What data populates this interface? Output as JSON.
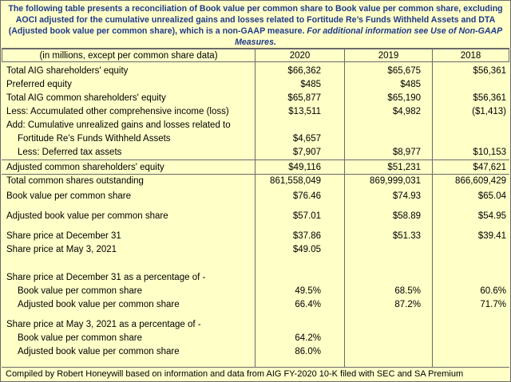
{
  "intro": {
    "text": "The following table presents a reconciliation of Book value per common share to Book value per common share, excluding AOCI adjusted for the cumulative unrealized gains and losses related to Fortitude Re’s Funds Withheld Assets and DTA (Adjusted book value per common share), which is a non-GAAP measure.",
    "emphasis": "For additional information see Use of Non-GAAP Measures."
  },
  "header": {
    "label": "(in millions, except per common share data)",
    "years": [
      "2020",
      "2019",
      "2018"
    ]
  },
  "rows": [
    {
      "label": "Total AIG shareholders' equity",
      "v2020": "$66,362",
      "v2019": "$65,675",
      "v2018": "$56,361"
    },
    {
      "label": "Preferred equity",
      "v2020": "$485",
      "v2019": "$485",
      "v2018": ""
    },
    {
      "label": "Total AIG common shareholders' equity",
      "v2020": "$65,877",
      "v2019": "$65,190",
      "v2018": "$56,361"
    },
    {
      "label": "Less: Accumulated other comprehensive income (loss)",
      "v2020": "$13,511",
      "v2019": "$4,982",
      "v2018": "($1,413)"
    },
    {
      "label": "Add: Cumulative unrealized gains and losses related to",
      "v2020": "",
      "v2019": "",
      "v2018": ""
    },
    {
      "label": "Fortitude Re’s Funds Withheld Assets",
      "v2020": "$4,657",
      "v2019": "",
      "v2018": ""
    },
    {
      "label": "Less: Deferred tax assets",
      "v2020": "$7,907",
      "v2019": "$8,977",
      "v2018": "$10,153"
    },
    {
      "label": "Adjusted common shareholders' equity",
      "v2020": "$49,116",
      "v2019": "$51,231",
      "v2018": "$47,621"
    },
    {
      "label": "Total common shares outstanding",
      "v2020": "861,558,049",
      "v2019": "869,999,031",
      "v2018": "866,609,429"
    },
    {
      "label": "Book value per common share",
      "v2020": "$76.46",
      "v2019": "$74.93",
      "v2018": "$65.04"
    },
    {
      "label": "Adjusted book value per common share",
      "v2020": "$57.01",
      "v2019": "$58.89",
      "v2018": "$54.95"
    },
    {
      "label": "Share price at December 31",
      "v2020": "$37.86",
      "v2019": "$51.33",
      "v2018": "$39.41"
    },
    {
      "label": "Share price at May 3, 2021",
      "v2020": "$49.05",
      "v2019": "",
      "v2018": ""
    },
    {
      "label": "Share price at December 31 as a percentage of -",
      "v2020": "",
      "v2019": "",
      "v2018": ""
    },
    {
      "label": "Book value per common share",
      "v2020": "49.5%",
      "v2019": "68.5%",
      "v2018": "60.6%"
    },
    {
      "label": "Adjusted book value per common share",
      "v2020": "66.4%",
      "v2019": "87.2%",
      "v2018": "71.7%"
    },
    {
      "label": "Share price at May 3, 2021 as a percentage of -",
      "v2020": "",
      "v2019": "",
      "v2018": ""
    },
    {
      "label": "Book value per common share",
      "v2020": "64.2%",
      "v2019": "",
      "v2018": ""
    },
    {
      "label": "Adjusted book value per common share",
      "v2020": "86.0%",
      "v2019": "",
      "v2018": ""
    }
  ],
  "footer": "Compiled by Robert Honeywill based on information and data from AIG FY-2020 10-K filed with SEC and SA Premium",
  "colors": {
    "background": "#ffffc8",
    "intro_text": "#1f3a8a",
    "border": "#6a6a6a"
  }
}
